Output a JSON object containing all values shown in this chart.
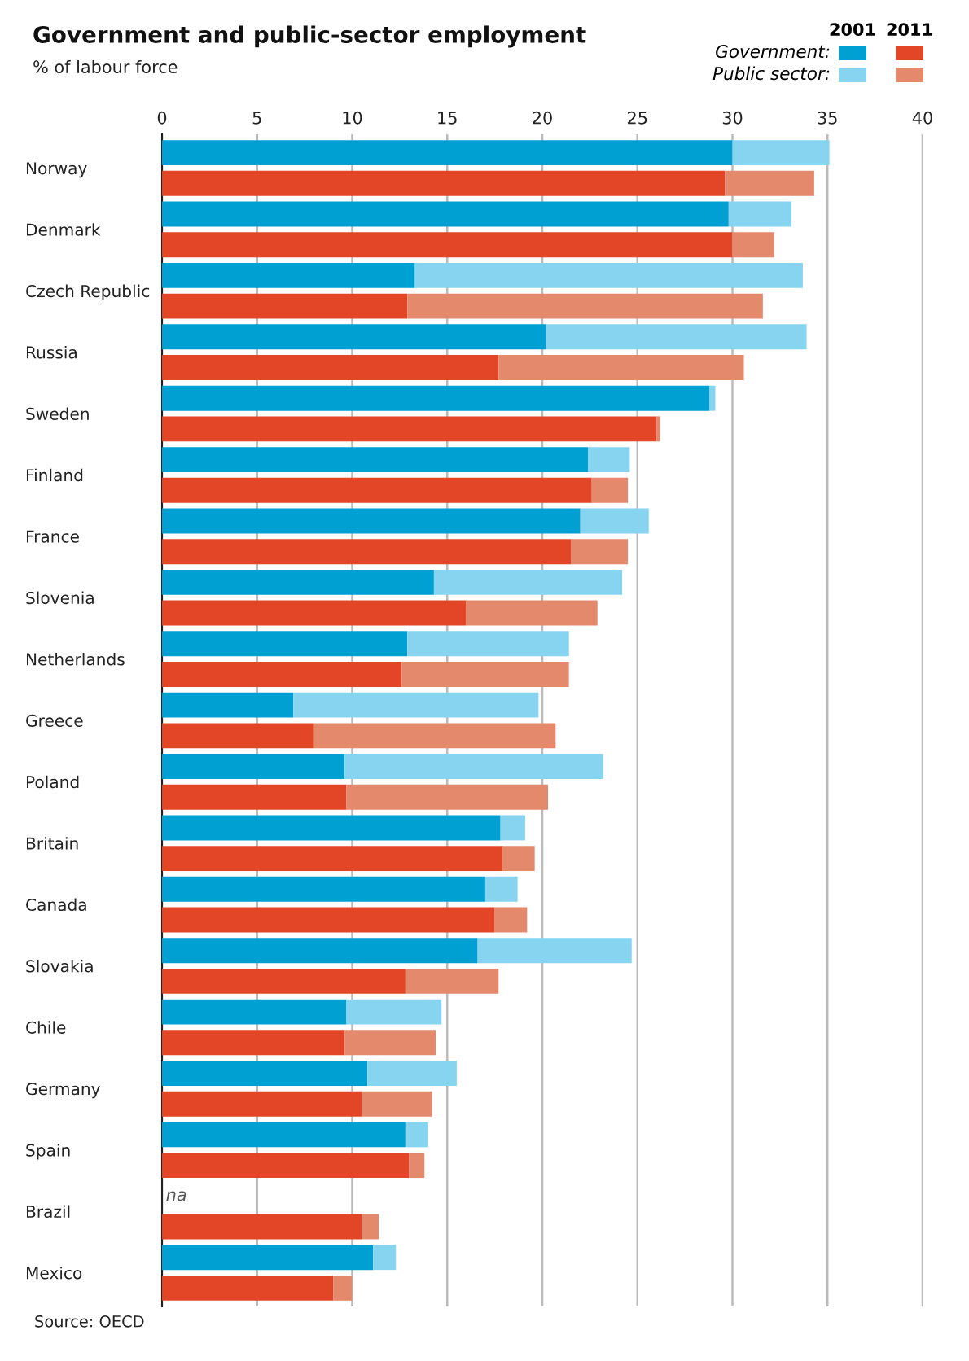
{
  "chart_data": {
    "type": "bar",
    "orientation": "horizontal",
    "stacked": true,
    "title": "Government and public-sector employment",
    "subtitle": "% of labour force",
    "categories": [
      "Norway",
      null,
      "Denmark",
      null,
      "Czech Republic",
      null,
      "Russia",
      null,
      "Sweden",
      null,
      "Finland",
      null,
      "France",
      null,
      "Slovenia",
      null,
      "Netherlands",
      null,
      "Greece",
      null,
      "Poland",
      null,
      "Britain",
      null,
      "Canada",
      null,
      "Slovakia",
      null,
      "Chile",
      null,
      "Germany",
      null,
      "Spain",
      null,
      "Brazil",
      null,
      "Mexico",
      null
    ],
    "series": [
      {
        "name": "Government:",
        "color": "#00a0d2",
        "values": [
          30.0,
          null,
          29.8,
          null,
          13.3,
          null,
          20.2,
          null,
          28.8,
          null,
          22.4,
          null,
          22.0,
          null,
          14.3,
          null,
          12.9,
          null,
          6.9,
          null,
          9.6,
          null,
          17.8,
          null,
          17.0,
          null,
          16.6,
          null,
          9.7,
          null,
          10.8,
          null,
          12.8,
          null,
          null,
          null,
          11.1,
          null
        ]
      },
      {
        "name": "Public sector:",
        "color": "#86d4f0",
        "values": [
          5.1,
          null,
          3.3,
          null,
          20.4,
          null,
          13.7,
          null,
          0.3,
          null,
          2.2,
          null,
          3.6,
          null,
          9.9,
          null,
          8.5,
          null,
          12.9,
          null,
          13.6,
          null,
          1.3,
          null,
          1.7,
          null,
          8.1,
          null,
          5.0,
          null,
          4.7,
          null,
          1.2,
          null,
          null,
          null,
          1.2,
          null
        ]
      },
      {
        "color": "#e34626",
        "values": [
          null,
          29.6,
          null,
          30.0,
          null,
          12.9,
          null,
          17.7,
          null,
          26.0,
          null,
          22.6,
          null,
          21.5,
          null,
          16.0,
          null,
          12.6,
          null,
          8.0,
          null,
          9.7,
          null,
          17.9,
          null,
          17.5,
          null,
          12.8,
          null,
          9.6,
          null,
          10.5,
          null,
          13.0,
          null,
          10.5,
          null,
          9.0
        ]
      },
      {
        "color": "#e5896c",
        "values": [
          null,
          4.7,
          null,
          2.2,
          null,
          18.7,
          null,
          12.9,
          null,
          0.2,
          null,
          1.9,
          null,
          3.0,
          null,
          6.9,
          null,
          8.8,
          null,
          12.7,
          null,
          10.6,
          null,
          1.7,
          null,
          1.7,
          null,
          4.9,
          null,
          4.8,
          null,
          3.7,
          null,
          0.8,
          null,
          0.9,
          null,
          1.0
        ]
      }
    ],
    "xlim": [
      0,
      40
    ],
    "xticks": [
      0,
      5,
      10,
      15,
      20,
      25,
      30,
      35,
      40
    ],
    "grid": "x",
    "legend": "top right",
    "annotations": [
      "2001",
      "2011",
      "na",
      "Source: OECD"
    ]
  }
}
